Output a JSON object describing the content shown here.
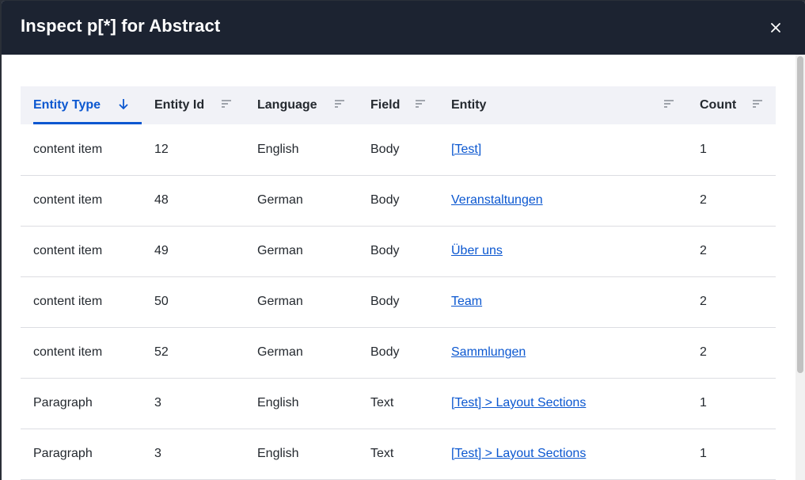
{
  "dialog": {
    "title": "Inspect p[*] for Abstract",
    "close_icon": "close-icon"
  },
  "table": {
    "columns": [
      {
        "label": "Entity Type",
        "sort": "descending",
        "icon": "arrow-down-icon"
      },
      {
        "label": "Entity Id",
        "sort": "none",
        "icon": "sort-icon"
      },
      {
        "label": "Language",
        "sort": "none",
        "icon": "sort-icon"
      },
      {
        "label": "Field",
        "sort": "none",
        "icon": "sort-icon"
      },
      {
        "label": "Entity",
        "sort": "none",
        "icon": "sort-icon"
      },
      {
        "label": "Count",
        "sort": "none",
        "icon": "sort-icon"
      }
    ],
    "rows": [
      {
        "type": "content item",
        "id": "12",
        "language": "English",
        "field": "Body",
        "entity": "[Test]",
        "count": "1"
      },
      {
        "type": "content item",
        "id": "48",
        "language": "German",
        "field": "Body",
        "entity": "Veranstaltungen",
        "count": "2"
      },
      {
        "type": "content item",
        "id": "49",
        "language": "German",
        "field": "Body",
        "entity": "Über uns",
        "count": "2"
      },
      {
        "type": "content item",
        "id": "50",
        "language": "German",
        "field": "Body",
        "entity": "Team",
        "count": "2"
      },
      {
        "type": "content item",
        "id": "52",
        "language": "German",
        "field": "Body",
        "entity": "Sammlungen",
        "count": "2"
      },
      {
        "type": "Paragraph",
        "id": "3",
        "language": "English",
        "field": "Text",
        "entity": "[Test] > Layout Sections",
        "count": "1"
      },
      {
        "type": "Paragraph",
        "id": "3",
        "language": "English",
        "field": "Text",
        "entity": "[Test] > Layout Sections",
        "count": "1"
      }
    ]
  },
  "colors": {
    "header_bg": "#1c2331",
    "accent": "#0b57d0",
    "table_header_bg": "#f1f2f7"
  }
}
